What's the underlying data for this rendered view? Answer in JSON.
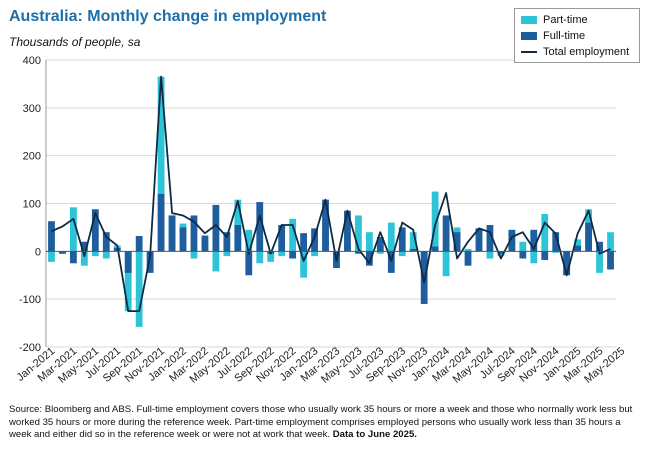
{
  "chart_data": {
    "type": "bar",
    "title": "Australia: Monthly change in employment",
    "subtitle": "Thousands of people, sa",
    "ylim": [
      -200,
      400
    ],
    "yticks": [
      -200,
      -100,
      0,
      100,
      200,
      300,
      400
    ],
    "tick_labels": [
      "Jan-2021",
      "Mar-2021",
      "May-2021",
      "Jul-2021",
      "Sep-2021",
      "Nov-2021",
      "Jan-2022",
      "Mar-2022",
      "May-2022",
      "Jul-2022",
      "Sep-2022",
      "Nov-2022",
      "Jan-2023",
      "Mar-2023",
      "May-2023",
      "Jul-2023",
      "Sep-2023",
      "Nov-2023",
      "Jan-2024",
      "Mar-2024",
      "May-2024",
      "Jul-2024",
      "Sep-2024",
      "Nov-2024",
      "Jan-2025",
      "Mar-2025",
      "May-2025"
    ],
    "grid": "horizontal",
    "legend_position": "top-right",
    "series": [
      {
        "name": "Part-time",
        "type": "bar",
        "color": "#2ec4d8",
        "values": [
          -22,
          -5,
          92,
          -30,
          -10,
          -15,
          12,
          -125,
          -158,
          -38,
          365,
          75,
          58,
          -15,
          22,
          -42,
          -10,
          108,
          45,
          -25,
          -22,
          -10,
          68,
          -55,
          -10,
          40,
          -10,
          15,
          75,
          40,
          -5,
          60,
          -10,
          40,
          -12,
          125,
          -52,
          50,
          5,
          48,
          -15,
          -10,
          42,
          20,
          -25,
          78,
          -3,
          -50,
          25,
          88,
          -45,
          40
        ]
      },
      {
        "name": "Full-time",
        "type": "bar",
        "color": "#1e5d9e",
        "values": [
          63,
          -5,
          -25,
          20,
          88,
          40,
          7,
          -45,
          32,
          -45,
          120,
          75,
          50,
          75,
          33,
          97,
          40,
          55,
          -50,
          103,
          -5,
          55,
          -15,
          38,
          48,
          108,
          -35,
          85,
          -5,
          -30,
          30,
          -45,
          50,
          5,
          -110,
          10,
          75,
          40,
          -30,
          48,
          55,
          -5,
          45,
          -15,
          45,
          -18,
          40,
          -50,
          12,
          60,
          20,
          -38
        ]
      },
      {
        "name": "Total employment",
        "type": "line",
        "color": "#0d2b45",
        "values": [
          42,
          52,
          68,
          -10,
          80,
          30,
          12,
          -125,
          -125,
          -10,
          365,
          80,
          75,
          62,
          38,
          55,
          30,
          105,
          -5,
          75,
          -5,
          55,
          55,
          -20,
          30,
          108,
          -20,
          85,
          5,
          -25,
          40,
          -20,
          60,
          45,
          -65,
          55,
          122,
          -15,
          20,
          48,
          40,
          -15,
          30,
          40,
          5,
          60,
          37,
          -50,
          37,
          85,
          -5,
          5
        ]
      }
    ]
  },
  "legend": {
    "part_time": "Part-time",
    "full_time": "Full-time",
    "total": "Total employment"
  },
  "footnote": {
    "text": "Source: Bloomberg and ABS.  Full-time employment covers those who usually work 35 hours or more a week and those who normally work less but worked 35 hours or  more during the reference week.  Part-time employment comprises employed persons who usually work less than 35 hours a week and either did so in the reference week or were not at work that week. ",
    "bold": "Data to June 2025."
  }
}
